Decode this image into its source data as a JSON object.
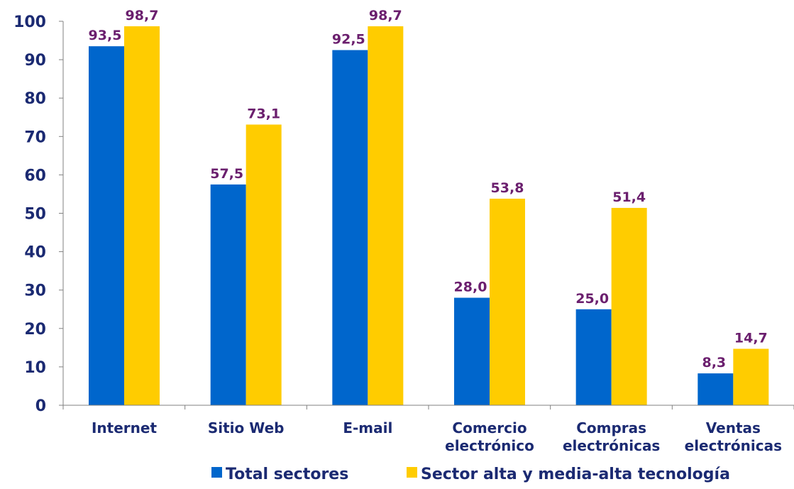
{
  "chart_data": {
    "type": "bar",
    "title": "",
    "xlabel": "",
    "ylabel": "",
    "ylim": [
      0,
      100
    ],
    "yticks": [
      0,
      10,
      20,
      30,
      40,
      50,
      60,
      70,
      80,
      90,
      100
    ],
    "grid": false,
    "legend_position": "bottom-right",
    "categories": [
      [
        "Internet"
      ],
      [
        "Sitio Web"
      ],
      [
        "E-mail"
      ],
      [
        "Comercio",
        "electrónico"
      ],
      [
        "Compras",
        "electrónicas"
      ],
      [
        "Ventas",
        "electrónicas"
      ]
    ],
    "series": [
      {
        "name": "Total sectores",
        "color": "#0066cc",
        "values": [
          93.5,
          57.5,
          92.5,
          28.0,
          25.0,
          8.3
        ],
        "labels": [
          "93,5",
          "57,5",
          "92,5",
          "28,0",
          "25,0",
          "8,3"
        ]
      },
      {
        "name": "Sector alta y media-alta tecnología",
        "color": "#ffcc00",
        "values": [
          98.7,
          73.1,
          98.7,
          53.8,
          51.4,
          14.7
        ],
        "labels": [
          "98,7",
          "73,1",
          "98,7",
          "53,8",
          "51,4",
          "14,7"
        ]
      }
    ],
    "colors": {
      "axis": "#808080",
      "tick_text": "#1b2a72",
      "data_label_text": "#6b1f6e"
    }
  }
}
